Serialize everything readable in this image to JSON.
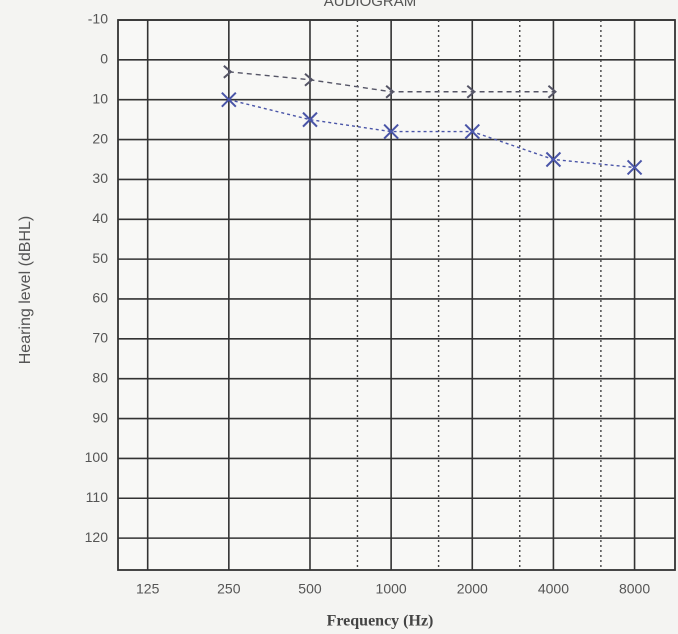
{
  "chart_data": {
    "type": "line",
    "title": "AUDIOGRAM",
    "x_label": "Frequency (Hz)",
    "y_label": "Hearing level (dBHL)",
    "log_x": true,
    "y_inverted": true,
    "grid": true,
    "xlim": [
      97,
      11300
    ],
    "xticks": [
      125,
      250,
      500,
      1000,
      2000,
      4000,
      8000
    ],
    "minor_xticks": [
      750,
      1500,
      3000,
      6000
    ],
    "ylim": [
      -10,
      128
    ],
    "yticks": [
      -10,
      0,
      10,
      20,
      30,
      40,
      50,
      60,
      70,
      80,
      90,
      100,
      110,
      120
    ],
    "series": [
      {
        "color": "#4a55a8",
        "marker": "x",
        "x": [
          250,
          500,
          1000,
          2000,
          4000,
          8000
        ],
        "values": [
          10,
          15,
          18,
          18,
          25,
          27
        ]
      },
      {
        "color": "#555566",
        "marker": "arrow",
        "x": [
          250,
          500,
          1000,
          2000,
          4000
        ],
        "values": [
          3,
          5,
          8,
          8,
          8
        ]
      }
    ]
  }
}
